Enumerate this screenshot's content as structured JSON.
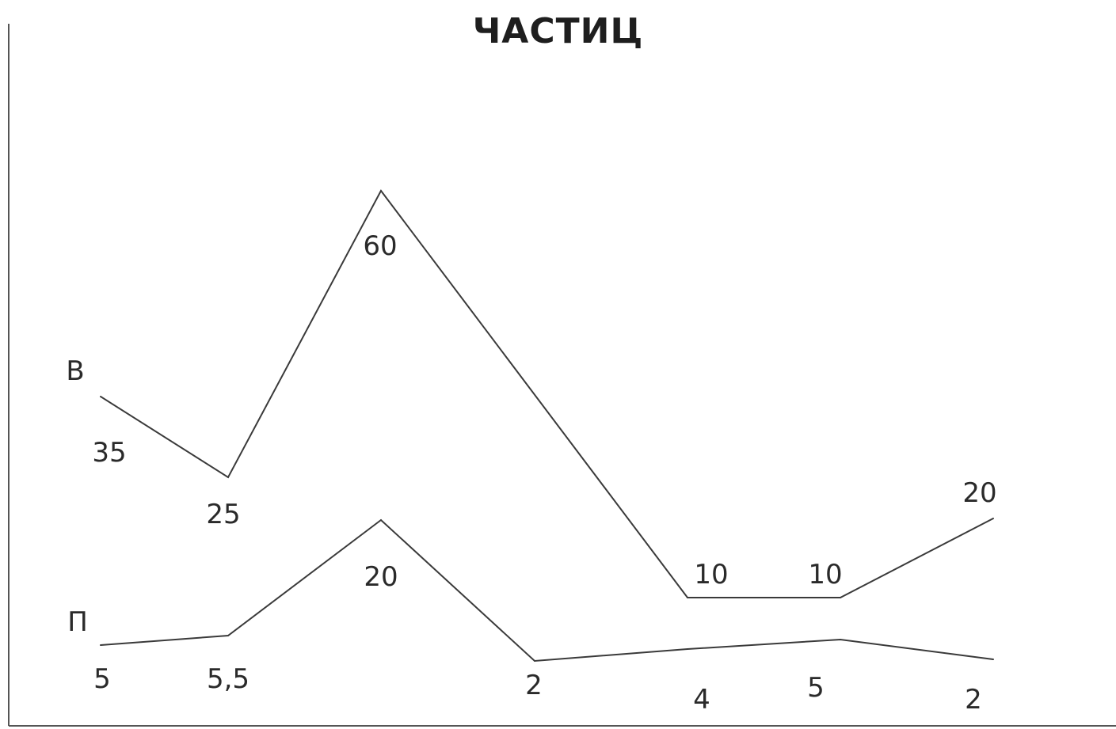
{
  "chart_data": {
    "type": "line",
    "title": "ЧАСТИЦ",
    "series": [
      {
        "name": "В",
        "values": [
          35,
          25,
          60,
          10,
          10,
          20
        ],
        "labels": [
          "35",
          "25",
          "60",
          "10",
          "10",
          "20"
        ]
      },
      {
        "name": "П",
        "values": [
          5,
          5.5,
          20,
          2,
          4,
          5,
          2
        ],
        "labels": [
          "5",
          "5,5",
          "20",
          "2",
          "4",
          "5",
          "2"
        ]
      }
    ],
    "color": "#3a3a3a"
  }
}
